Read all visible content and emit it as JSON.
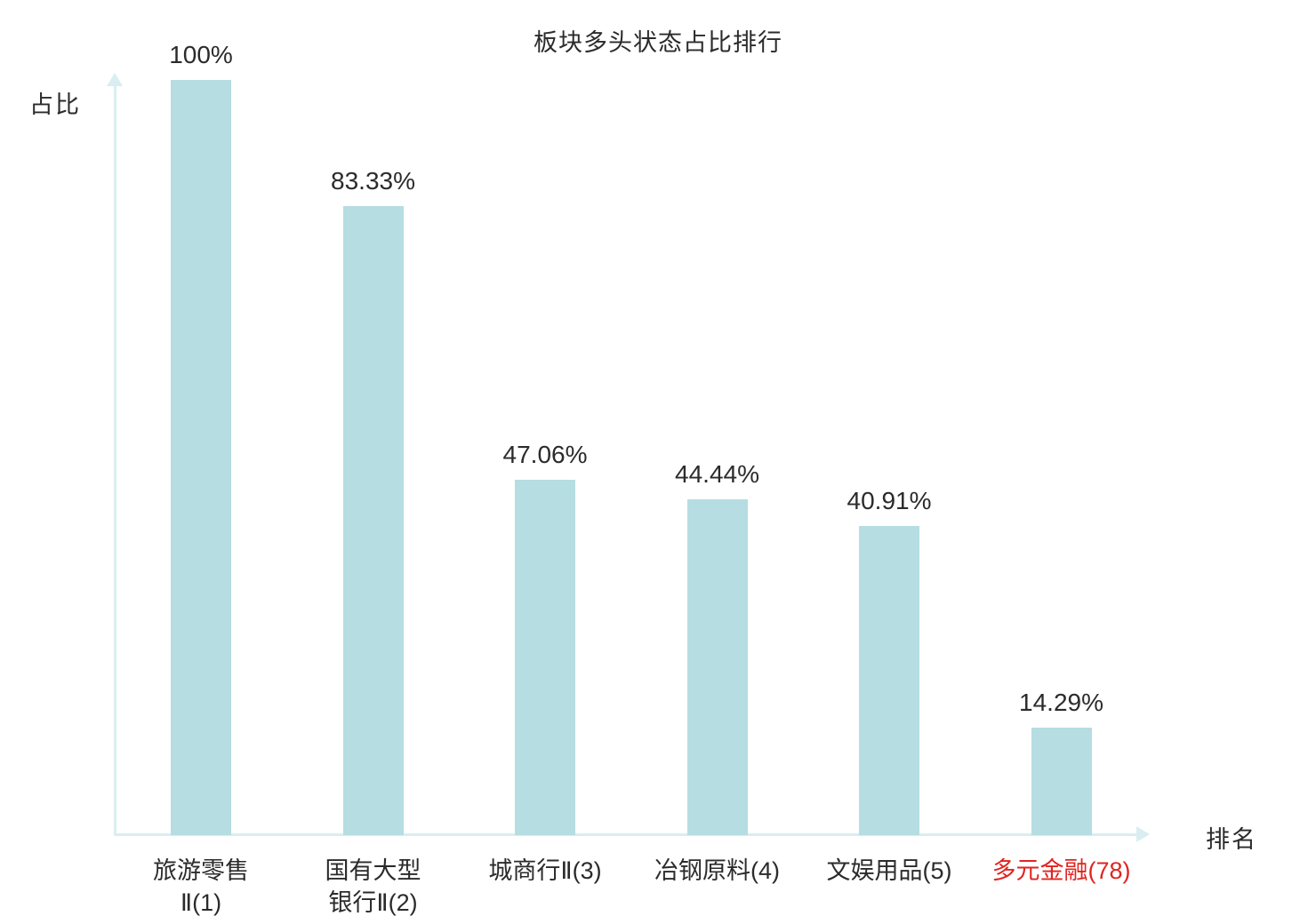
{
  "chart_data": {
    "type": "bar",
    "title": "板块多头状态占比排行",
    "ylabel": "占比",
    "xlabel": "排名",
    "categories": [
      "旅游零售\nⅡ(1)",
      "国有大型\n银行Ⅱ(2)",
      "城商行Ⅱ(3)",
      "冶钢原料(4)",
      "文娱用品(5)",
      "多元金融(78)"
    ],
    "values": [
      100,
      83.33,
      47.06,
      44.44,
      40.91,
      14.29
    ],
    "value_labels": [
      "100%",
      "83.33%",
      "47.06%",
      "44.44%",
      "40.91%",
      "14.29%"
    ],
    "ylim": [
      0,
      100
    ],
    "grid": false,
    "legend": "none",
    "highlight_index": 5,
    "colors": {
      "bar": "#b5dde2",
      "axis": "#d9eef0",
      "text": "#2b2b2b",
      "highlight_text": "#e02420"
    }
  }
}
